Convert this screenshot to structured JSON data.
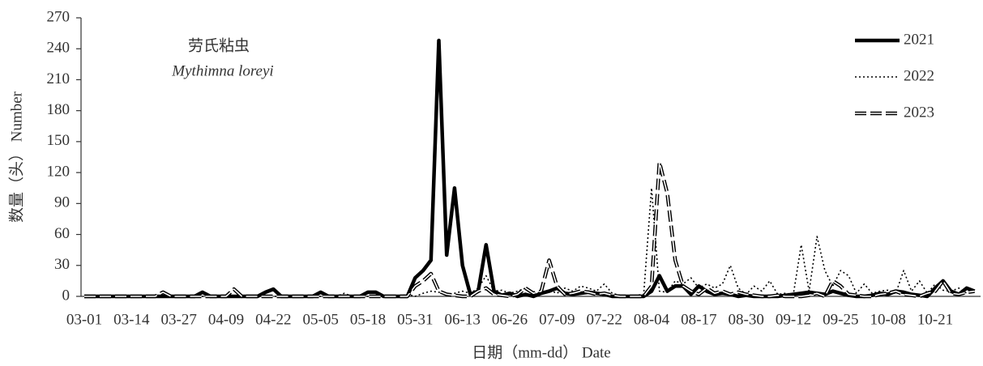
{
  "chart_data": {
    "type": "line",
    "annotation": [
      "劳氏粘虫",
      "Mythimna loreyi"
    ],
    "y_label": "数量（头） Number",
    "x_label": "日期（mm-dd） Date",
    "categories": [
      "03-01",
      null,
      null,
      null,
      null,
      null,
      "03-14",
      null,
      null,
      null,
      null,
      null,
      "03-27",
      null,
      null,
      null,
      null,
      null,
      "04-09",
      null,
      null,
      null,
      null,
      null,
      "04-22",
      null,
      null,
      null,
      null,
      null,
      "05-05",
      null,
      null,
      null,
      null,
      null,
      "05-18",
      null,
      null,
      null,
      null,
      null,
      "05-31",
      null,
      null,
      null,
      null,
      null,
      "06-13",
      null,
      null,
      null,
      null,
      null,
      "06-26",
      null,
      null,
      null,
      null,
      null,
      "07-09",
      null,
      null,
      null,
      null,
      null,
      "07-22",
      null,
      null,
      null,
      null,
      null,
      "08-04",
      null,
      null,
      null,
      null,
      null,
      "08-17",
      null,
      null,
      null,
      null,
      null,
      "08-30",
      null,
      null,
      null,
      null,
      null,
      "09-12",
      null,
      null,
      null,
      null,
      null,
      "09-25",
      null,
      null,
      null,
      null,
      null,
      "10-08",
      null,
      null,
      null,
      null,
      null,
      "10-21",
      null,
      null,
      null,
      null,
      null
    ],
    "series": [
      {
        "name": "2021",
        "color": "#000000",
        "linestyle": "solid",
        "values": [
          0,
          0,
          0,
          0,
          0,
          0,
          0,
          0,
          0,
          0,
          0,
          0,
          0,
          0,
          0,
          4,
          0,
          0,
          0,
          0,
          0,
          0,
          0,
          4,
          7,
          0,
          0,
          0,
          0,
          0,
          4,
          0,
          0,
          0,
          0,
          0,
          4,
          4,
          0,
          0,
          0,
          0,
          18,
          25,
          35,
          248,
          40,
          105,
          30,
          2,
          5,
          50,
          5,
          1,
          3,
          0,
          2,
          0,
          3,
          5,
          8,
          3,
          2,
          3,
          4,
          3,
          2,
          0,
          0,
          0,
          0,
          0,
          5,
          20,
          5,
          10,
          10,
          2,
          10,
          5,
          2,
          3,
          2,
          0,
          1,
          0,
          0,
          0,
          0,
          1,
          2,
          3,
          4,
          3,
          2,
          5,
          3,
          1,
          0,
          0,
          1,
          3,
          2,
          5,
          4,
          2,
          1,
          0,
          8,
          15,
          5,
          2,
          8,
          5
        ]
      },
      {
        "name": "2022",
        "color": "#000000",
        "linestyle": "dotted",
        "values": [
          0,
          0,
          0,
          0,
          0,
          0,
          0,
          0,
          0,
          0,
          0,
          0,
          0,
          0,
          0,
          0,
          0,
          0,
          0,
          0,
          0,
          0,
          0,
          0,
          0,
          0,
          0,
          0,
          0,
          0,
          0,
          0,
          0,
          3,
          0,
          0,
          0,
          0,
          0,
          0,
          0,
          2,
          0,
          3,
          5,
          4,
          2,
          3,
          5,
          3,
          8,
          20,
          5,
          6,
          3,
          5,
          8,
          3,
          4,
          6,
          3,
          8,
          5,
          10,
          8,
          5,
          12,
          3,
          1,
          0,
          1,
          2,
          105,
          5,
          4,
          15,
          12,
          18,
          8,
          12,
          8,
          12,
          30,
          8,
          2,
          10,
          5,
          15,
          2,
          3,
          2,
          50,
          5,
          58,
          25,
          10,
          25,
          20,
          3,
          12,
          3,
          5,
          6,
          3,
          25,
          5,
          15,
          3,
          12,
          6,
          5,
          8,
          3,
          6
        ]
      },
      {
        "name": "2023",
        "color": "#000000",
        "linestyle": "hollow-dash",
        "values": [
          0,
          0,
          0,
          0,
          0,
          0,
          0,
          0,
          0,
          0,
          4,
          0,
          0,
          0,
          0,
          0,
          0,
          0,
          0,
          7,
          0,
          0,
          0,
          0,
          0,
          0,
          0,
          0,
          0,
          0,
          0,
          0,
          0,
          0,
          0,
          0,
          0,
          0,
          0,
          0,
          0,
          0,
          10,
          15,
          22,
          5,
          2,
          1,
          0,
          0,
          5,
          8,
          2,
          1,
          0,
          2,
          8,
          3,
          5,
          35,
          10,
          2,
          3,
          5,
          4,
          2,
          3,
          1,
          0,
          0,
          0,
          0,
          10,
          130,
          100,
          35,
          10,
          5,
          2,
          8,
          3,
          5,
          2,
          4,
          2,
          1,
          0,
          0,
          1,
          0,
          0,
          0,
          1,
          3,
          0,
          15,
          10,
          2,
          1,
          0,
          0,
          2,
          3,
          5,
          2,
          1,
          0,
          3,
          5,
          15,
          3,
          2,
          4,
          5
        ]
      }
    ],
    "ylim": [
      0,
      270
    ],
    "yticks": [
      0,
      30,
      60,
      90,
      120,
      150,
      180,
      210,
      240,
      270
    ],
    "grid": false,
    "legend": "upper right"
  }
}
